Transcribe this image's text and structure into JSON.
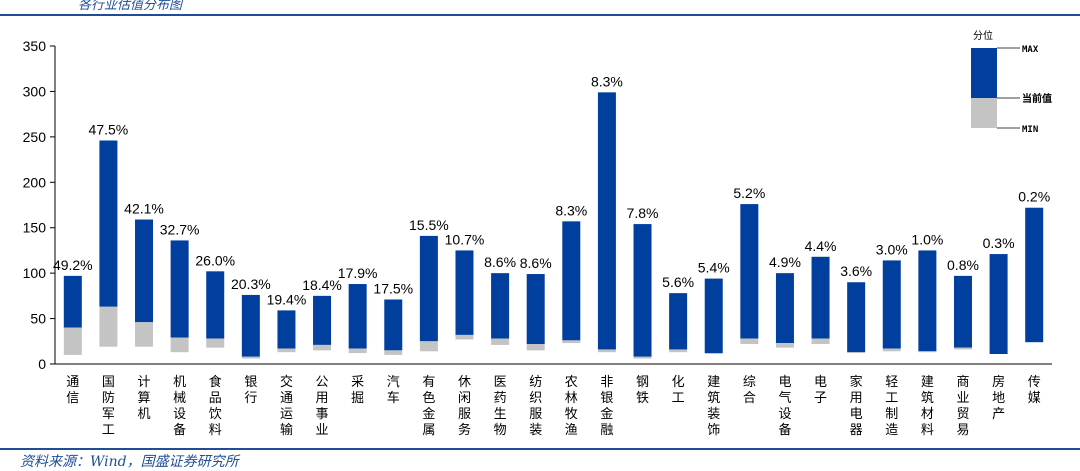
{
  "title": "各行业估值分布图",
  "source": "资料来源：Wind，国盛证券研究所",
  "colors": {
    "range_above": "#003f9e",
    "range_below": "#c4c4c4",
    "rule": "#1f4e96"
  },
  "legend": {
    "title": "分位",
    "max_label": "MAX",
    "current_label": "当前值",
    "min_label": "MIN"
  },
  "chart_data": {
    "type": "bar",
    "subtype": "floating-range",
    "title": "各行业估值分布图",
    "xlabel": "",
    "ylabel": "",
    "ylim": [
      0,
      350
    ],
    "yticks": [
      0,
      50,
      100,
      150,
      200,
      250,
      300,
      350
    ],
    "grid": false,
    "legend_position": "top-right",
    "categories": [
      "通信",
      "国防军工",
      "计算机",
      "机械设备",
      "食品饮料",
      "银行",
      "交通运输",
      "公用事业",
      "采掘",
      "汽车",
      "有色金属",
      "休闲服务",
      "医药生物",
      "纺织服装",
      "农林牧渔",
      "非银金融",
      "钢铁",
      "化工",
      "建筑装饰",
      "综合",
      "电气设备",
      "电子",
      "家用电器",
      "轻工制造",
      "建筑材料",
      "商业贸易",
      "房地产",
      "传媒"
    ],
    "series": [
      {
        "name": "MAX",
        "values": [
          97,
          246,
          159,
          136,
          102,
          76,
          59,
          75,
          88,
          71,
          141,
          125,
          100,
          99,
          157,
          299,
          154,
          78,
          94,
          176,
          100,
          118,
          90,
          114,
          125,
          97,
          121,
          172
        ]
      },
      {
        "name": "当前值",
        "values": [
          40,
          63,
          46,
          29,
          28,
          8,
          17,
          21,
          17,
          15,
          25,
          32,
          28,
          22,
          26,
          16,
          8,
          16,
          12,
          28,
          23,
          28,
          13,
          17,
          14,
          18,
          11,
          24
        ]
      },
      {
        "name": "MIN",
        "values": [
          10,
          19,
          19,
          13,
          18,
          6,
          13,
          15,
          12,
          10,
          14,
          27,
          21,
          15,
          23,
          13,
          6,
          13,
          11,
          22,
          18,
          22,
          12,
          14,
          13,
          16,
          11,
          24
        ]
      }
    ],
    "percentile_labels": [
      "49.2%",
      "47.5%",
      "42.1%",
      "32.7%",
      "26.0%",
      "20.3%",
      "19.4%",
      "18.4%",
      "17.9%",
      "17.5%",
      "15.5%",
      "10.7%",
      "8.6%",
      "8.6%",
      "8.3%",
      "8.3%",
      "7.8%",
      "5.6%",
      "5.4%",
      "5.2%",
      "4.9%",
      "4.4%",
      "3.6%",
      "3.0%",
      "1.0%",
      "0.8%",
      "0.3%",
      "0.2%"
    ]
  }
}
